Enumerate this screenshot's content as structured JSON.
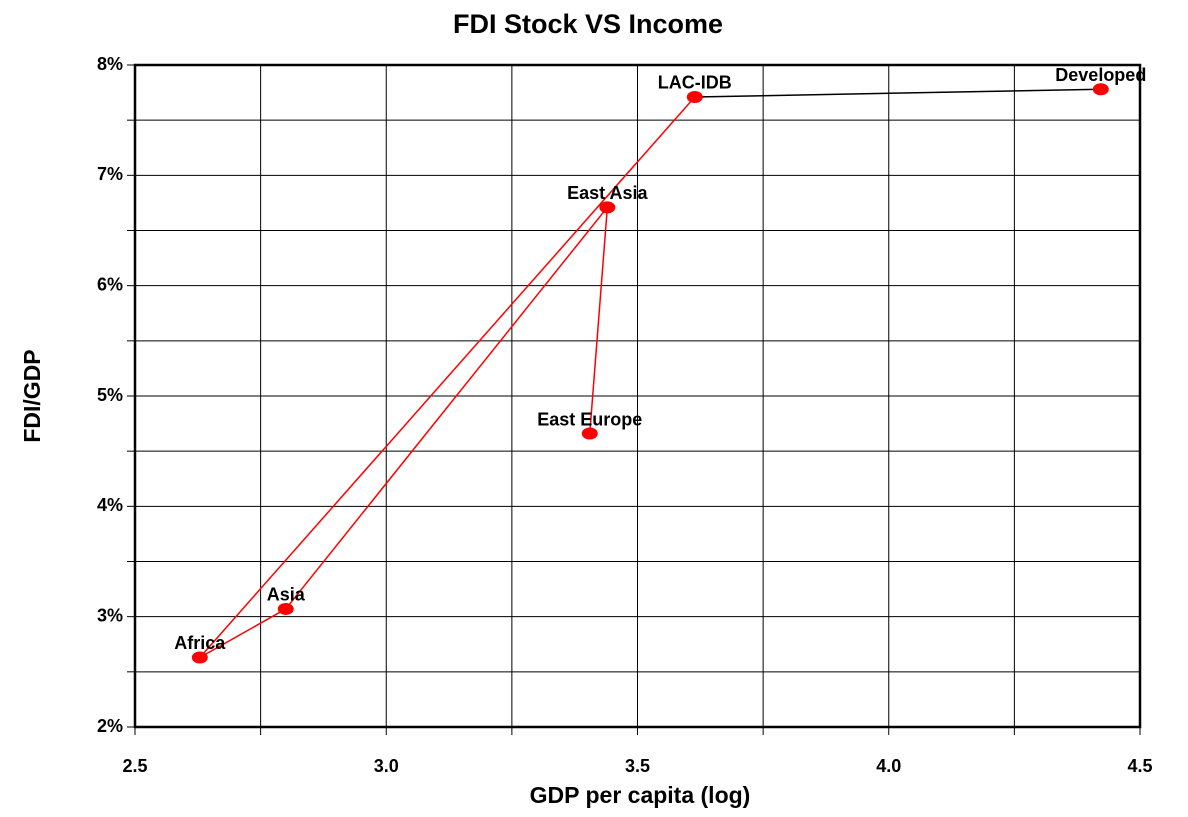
{
  "chart_data": {
    "type": "scatter",
    "title": "FDI Stock VS Income",
    "x_label": "GDP per capita (log)",
    "y_label": "FDI/GDP",
    "labels": [
      "East Europe",
      "East Asia",
      "Asia",
      "Africa",
      "LAC-IDB",
      "Developed"
    ],
    "x": [
      3.405,
      3.44,
      2.8,
      2.629,
      3.614,
      4.422
    ],
    "y": [
      4.66,
      6.71,
      3.07,
      2.63,
      7.71,
      7.78
    ],
    "color": "#ff0000",
    "segment_colors": [
      "#ff0000",
      "#ff0000",
      "#ff0000",
      "#ff0000",
      "#000000"
    ],
    "xlim": [
      2.5,
      4.5
    ],
    "xticks": [
      {
        "value": 2.5,
        "label": "2.5"
      },
      {
        "value": 3.0,
        "label": "3.0"
      },
      {
        "value": 3.5,
        "label": "3.5"
      },
      {
        "value": 4.0,
        "label": "4.0"
      },
      {
        "value": 4.5,
        "label": "4.5"
      }
    ],
    "xminor": [
      2.75,
      3.25,
      3.75,
      4.25
    ],
    "ylim": [
      2,
      8
    ],
    "yticks": [
      {
        "value": 2,
        "label": "2%"
      },
      {
        "value": 3,
        "label": "3%"
      },
      {
        "value": 4,
        "label": "4%"
      },
      {
        "value": 5,
        "label": "5%"
      },
      {
        "value": 6,
        "label": "6%"
      },
      {
        "value": 7,
        "label": "7%"
      },
      {
        "value": 8,
        "label": "8%"
      }
    ],
    "yminor": [
      2.5,
      3.5,
      4.5,
      5.5,
      6.5,
      7.5
    ],
    "grid": true
  }
}
